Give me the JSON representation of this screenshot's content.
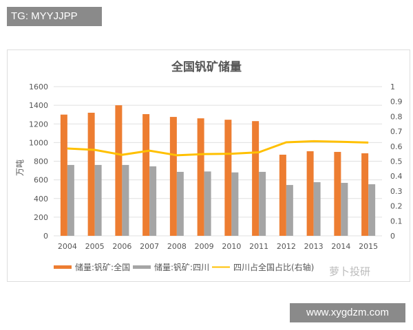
{
  "watermarks": {
    "top": "TG: MYYJJPP",
    "bottom": "www.xygdzm.com",
    "corner": "萝卜投研"
  },
  "chart_data": {
    "type": "bar",
    "title": "全国钒矿储量",
    "ylabel": "万吨",
    "ylim": [
      0,
      1600
    ],
    "y2lim": [
      0,
      1
    ],
    "yticks": [
      "0",
      "200",
      "400",
      "600",
      "800",
      "1000",
      "1200",
      "1400",
      "1600"
    ],
    "y2ticks": [
      "0",
      "0.1",
      "0.2",
      "0.3",
      "0.4",
      "0.5",
      "0.6",
      "0.7",
      "0.8",
      "0.9",
      "1"
    ],
    "categories": [
      "2004",
      "2005",
      "2006",
      "2007",
      "2008",
      "2009",
      "2010",
      "2011",
      "2012",
      "2013",
      "2014",
      "2015"
    ],
    "grid": true,
    "legend_placement": "bottom",
    "series": [
      {
        "name": "储量:钒矿:全国",
        "type": "bar",
        "axis": "left",
        "color": "#ED7D31",
        "values": [
          1300,
          1320,
          1400,
          1305,
          1275,
          1260,
          1245,
          1230,
          870,
          907,
          900,
          885
        ]
      },
      {
        "name": "储量:钒矿:四川",
        "type": "bar",
        "axis": "left",
        "color": "#A5A5A5",
        "values": [
          760,
          760,
          760,
          745,
          686,
          690,
          680,
          686,
          545,
          575,
          568,
          553
        ]
      },
      {
        "name": "四川占全国占比(右轴)",
        "type": "line",
        "axis": "right",
        "color": "#FFC000",
        "values": [
          0.585,
          0.576,
          0.543,
          0.571,
          0.54,
          0.548,
          0.55,
          0.56,
          0.627,
          0.634,
          0.63,
          0.625
        ]
      }
    ]
  }
}
